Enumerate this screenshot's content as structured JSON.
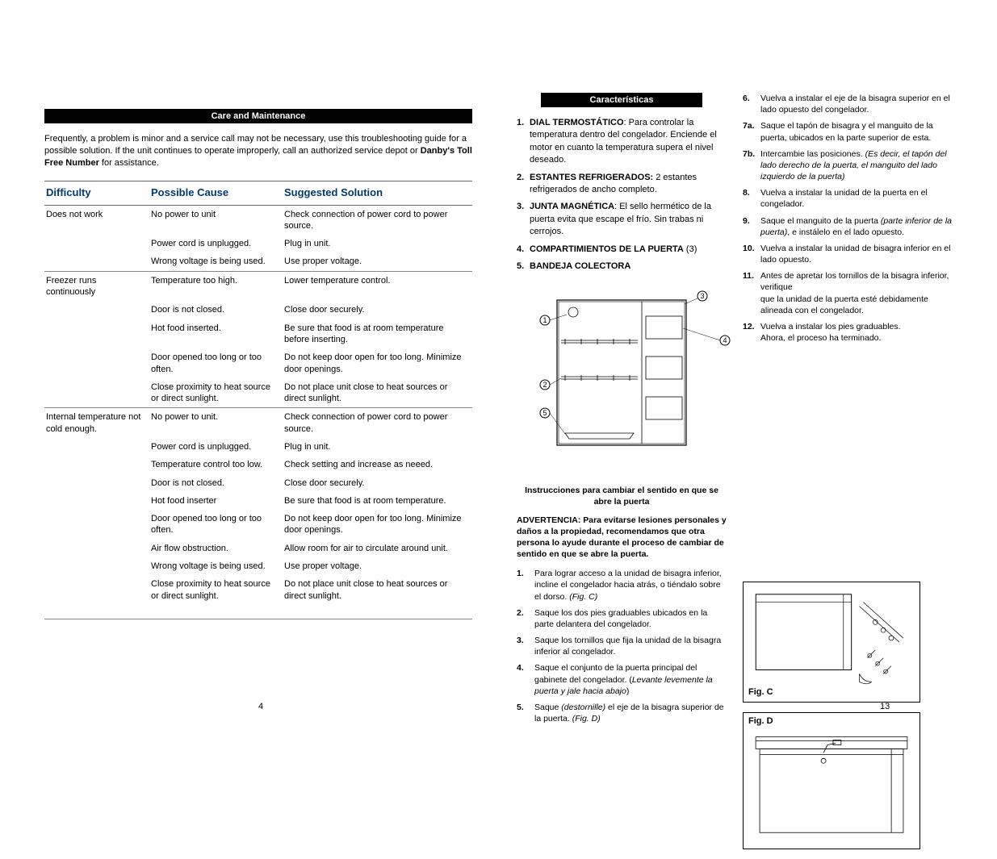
{
  "leftPage": {
    "header": "Care and Maintenance",
    "intro_line1": "Frequently, a problem is minor and a service call may not be necessary, use this troubleshooting guide for a possible solution.  If the unit continues to operate improperly, call an authorized service depot or ",
    "intro_bold": "Danby's Toll Free Number",
    "intro_line2": " for assistance.",
    "table": {
      "headers": [
        "Difficulty",
        "Possible Cause",
        "Suggested Solution"
      ],
      "groups": [
        {
          "difficulty": "Does not work",
          "rows": [
            [
              "No power to unit",
              "Check connection of power cord to power source."
            ],
            [
              "Power cord is unplugged.",
              "Plug in unit."
            ],
            [
              "Wrong voltage is being used.",
              "Use proper voltage."
            ]
          ]
        },
        {
          "difficulty": "Freezer runs continuously",
          "rows": [
            [
              "Temperature too high.",
              "Lower temperature control."
            ],
            [
              "Door is not closed.",
              "Close door securely."
            ],
            [
              "Hot food inserted.",
              "Be sure that food is at room temperature before inserting."
            ],
            [
              "Door opened too long or too often.",
              "Do not keep door open for too long. Minimize door openings."
            ],
            [
              "Close proximity to heat source or direct sunlight.",
              "Do not place unit close to heat sources or direct sunlight."
            ]
          ]
        },
        {
          "difficulty": "Internal temperature not cold enough.",
          "rows": [
            [
              "No power to unit.",
              "Check connection of power cord to power source."
            ],
            [
              "Power cord is unplugged.",
              "Plug in unit."
            ],
            [
              "Temperature control too low.",
              "Check setting and increase as neeed."
            ],
            [
              "Door is not closed.",
              "Close door securely."
            ],
            [
              "Hot food inserter",
              "Be sure that food is at room temperature."
            ],
            [
              "Door opened too long or too often.",
              "Do not keep door open for too long. Minimize door openings."
            ],
            [
              "Air flow obstruction.",
              "Allow room for air to circulate around unit."
            ],
            [
              "Wrong voltage is being used.",
              "Use proper voltage."
            ],
            [
              "Close proximity to heat source or direct sunlight.",
              "Do not place unit close to heat sources or direct sunlight."
            ]
          ]
        }
      ]
    },
    "pageNumber": "4"
  },
  "rightPage": {
    "header": "Características",
    "features": [
      {
        "n": "1.",
        "b": "DIAL TERMOSTÁTICO",
        "t": ":   Para controlar la temperatura dentro del congelador. Enciende el motor en cuanto la temperatura supera el nivel deseado."
      },
      {
        "n": "2.",
        "b": "ESTANTES REFRIGERADOS:",
        "t": " 2 estantes refrigerados de ancho completo."
      },
      {
        "n": "3.",
        "b": "JUNTA MAGNÉTICA",
        "t": ":   El sello hermético de la puerta evita que escape el frío. Sin trabas ni cerrojos."
      },
      {
        "n": "4.",
        "b": "COMPARTIMIENTOS DE LA PUERTA",
        "t": " (3)"
      },
      {
        "n": "5.",
        "b": "BANDEJA COLECTORA",
        "t": ""
      }
    ],
    "rightSteps": [
      {
        "n": "6.",
        "t": "Vuelva a instalar el eje de la bisagra superior en el lado opuesto del congelador."
      },
      {
        "n": "7a.",
        "t": "Saque el tapón de bisagra y el manguito de la puerta, ubicados en la parte superior de esta."
      },
      {
        "n": "7b.",
        "t": "Intercambie las posiciones.  ",
        "i": "(Es decir, el tapón del lado derecho de la puerta, el manguito del lado izquierdo de la puerta)"
      },
      {
        "n": "8.",
        "t": "Vuelva a instalar la unidad de la puerta en el congelador."
      },
      {
        "n": "9.",
        "t": "Saque el manguito de la puerta ",
        "i": "(parte inferior de la puerta)",
        "t2": ", e instálelo en el lado opuesto."
      },
      {
        "n": "10.",
        "t": "Vuelva a instalar la unidad de bisagra inferior en el lado opuesto."
      },
      {
        "n": "11.",
        "t": "Antes de apretar los tornillos de la bisagra inferior, verifique",
        "br": true,
        "t2": "que la unidad de la puerta esté debidamente alineada con el congelador."
      },
      {
        "n": "12.",
        "t": "Vuelva a instalar los pies graduables.",
        "br": true,
        "t2": "Ahora, el proceso ha terminado."
      }
    ],
    "instrTitle": "Instrucciones para cambiar el sentido en que se abre la puerta",
    "warning": "ADVERTENCIA:  Para evitarse lesiones personales y daños a la propiedad, recomendamos que otra persona lo ayude durante el proceso de cambiar de sentido en que se abre la puerta.",
    "steps": [
      {
        "n": "1.",
        "t": "Para lograr acceso a la unidad de bisagra inferior, incline el congelador hacia atrás, o tiéndalo sobre el dorso.  ",
        "i": "(Fig. C)"
      },
      {
        "n": "2.",
        "t": "Saque los dos pies graduables ubicados en la parte delantera del congelador."
      },
      {
        "n": "3.",
        "t": "Saque los tornillos que fija la unidad de la bisagra inferior al congelador."
      },
      {
        "n": "4.",
        "t": "Saque el conjunto de la puerta principal del gabinete del congelador.  (",
        "i": "Levante levemente la puerta y jale hacia abajo",
        "t2": ")"
      },
      {
        "n": "5.",
        "t": "Saque ",
        "i": "(destornille)",
        "t2": " el eje de la bisagra superior de la puerta.  ",
        "i2": "(Fig. D)"
      }
    ],
    "figC": "Fig. C",
    "figD": "Fig. D",
    "pageNumber": "13"
  },
  "colors": {
    "headerBlue": "#003a70",
    "black": "#000000",
    "white": "#ffffff",
    "rule": "#888888"
  }
}
